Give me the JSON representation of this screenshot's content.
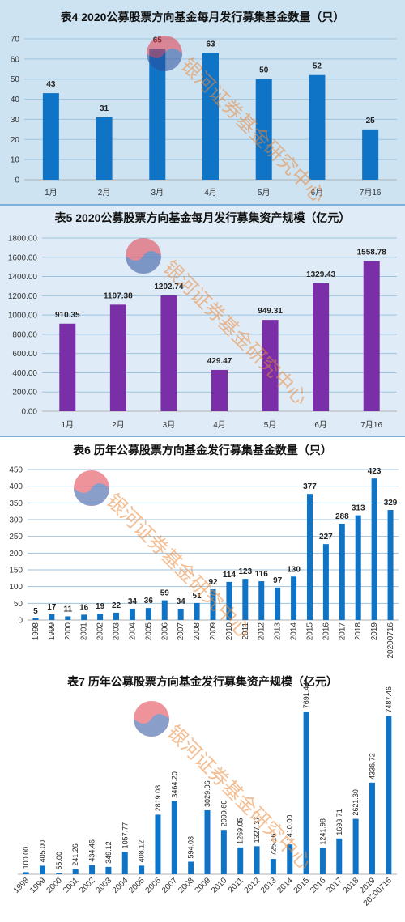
{
  "chart_data": [
    {
      "type": "bar",
      "title": "表4  2020公募股票方向基金每月发行募集基金数量（只）",
      "categories": [
        "1月",
        "2月",
        "3月",
        "4月",
        "5月",
        "6月",
        "7月16"
      ],
      "values": [
        43,
        31,
        65,
        63,
        50,
        52,
        25
      ],
      "value_labels": [
        "43",
        "31",
        "65",
        "63",
        "50",
        "52",
        "25"
      ],
      "ylim": [
        0,
        70
      ],
      "yticks": [
        "0",
        "10",
        "20",
        "30",
        "40",
        "50",
        "60",
        "70"
      ],
      "grid": true,
      "color": "#0f73c6"
    },
    {
      "type": "bar",
      "title": "表5  2020公募股票方向基金每月发行募集资产规模（亿元）",
      "categories": [
        "1月",
        "2月",
        "3月",
        "4月",
        "5月",
        "6月",
        "7月16"
      ],
      "values": [
        910.35,
        1107.38,
        1202.74,
        429.47,
        949.31,
        1329.43,
        1558.78
      ],
      "value_labels": [
        "910.35",
        "1107.38",
        "1202.74",
        "429.47",
        "949.31",
        "1329.43",
        "1558.78"
      ],
      "ylim": [
        0,
        1800
      ],
      "yticks": [
        "0.00",
        "200.00",
        "400.00",
        "600.00",
        "800.00",
        "1000.00",
        "1200.00",
        "1400.00",
        "1600.00",
        "1800.00"
      ],
      "grid": true,
      "color": "#7a2fa8"
    },
    {
      "type": "bar",
      "title": "表6  历年公募股票方向基金发行募集基金数量（只）",
      "categories": [
        "1998",
        "1999",
        "2000",
        "2001",
        "2002",
        "2003",
        "2004",
        "2005",
        "2006",
        "2007",
        "2008",
        "2009",
        "2010",
        "2011",
        "2012",
        "2013",
        "2014",
        "2015",
        "2016",
        "2017",
        "2018",
        "2019",
        "20200716"
      ],
      "values": [
        5,
        17,
        11,
        16,
        19,
        22,
        34,
        36,
        59,
        34,
        51,
        92,
        114,
        123,
        116,
        97,
        130,
        377,
        227,
        288,
        313,
        423,
        329
      ],
      "value_labels": [
        "5",
        "17",
        "11",
        "16",
        "19",
        "22",
        "34",
        "36",
        "59",
        "34",
        "51",
        "92",
        "114",
        "123",
        "116",
        "97",
        "130",
        "377",
        "227",
        "288",
        "313",
        "423",
        "329"
      ],
      "ylim": [
        0,
        450
      ],
      "yticks": [
        "0",
        "50",
        "100",
        "150",
        "200",
        "250",
        "300",
        "350",
        "400",
        "450"
      ],
      "grid": true,
      "color": "#0f73c6"
    },
    {
      "type": "bar",
      "title": "表7  历年公募股票方向基金发行募集资产规模（亿元）",
      "categories": [
        "1998",
        "1999",
        "2000",
        "2001",
        "2002",
        "2003",
        "2004",
        "2005",
        "2006",
        "2007",
        "2008",
        "2009",
        "2010",
        "2011",
        "2012",
        "2013",
        "2014",
        "2015",
        "2016",
        "2017",
        "2018",
        "2019",
        "20200716"
      ],
      "values": [
        100.0,
        405.0,
        55.0,
        241.26,
        434.46,
        349.12,
        1057.77,
        408.12,
        2819.08,
        3464.2,
        594.03,
        3029.06,
        2099.6,
        1269.05,
        1327.37,
        725.16,
        1410.0,
        7691.44,
        1241.98,
        1693.71,
        2621.3,
        4336.72,
        7487.46
      ],
      "value_labels": [
        "100.00",
        "405.00",
        "55.00",
        "241.26",
        "434.46",
        "349.12",
        "1057.77",
        "408.12",
        "2819.08",
        "3464.20",
        "594.03",
        "3029.06",
        "2099.60",
        "1269.05",
        "1327.37",
        "725.16",
        "1410.00",
        "7691.44",
        "1241.98",
        "1693.71",
        "2621.30",
        "4336.72",
        "7487.46"
      ],
      "grid": false,
      "color": "#0f73c6"
    }
  ],
  "watermark": {
    "text": "银河证券基金研究中心",
    "logo_colors": [
      "#e23b4a",
      "#2a4f9c"
    ],
    "text_color": "#ec8a3c"
  }
}
